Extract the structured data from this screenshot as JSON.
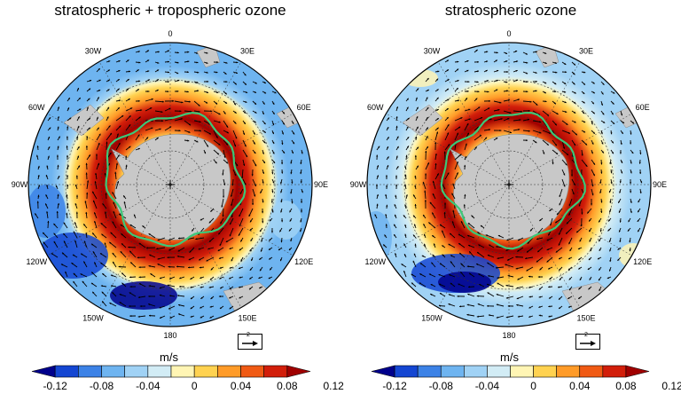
{
  "panels": [
    {
      "title": "stratospheric + tropospheric ozone"
    },
    {
      "title": "stratospheric ozone"
    }
  ],
  "map": {
    "longitude_labels": [
      "0",
      "30E",
      "60E",
      "90E",
      "120E",
      "150E",
      "180",
      "150W",
      "120W",
      "90W",
      "60W",
      "30W"
    ],
    "projection": "south polar stereographic",
    "field": "zonal wind change (shading) and wind vectors (arrows)",
    "contour_color": "#3cc878"
  },
  "colorbar": {
    "unit": "m/s",
    "tick_labels": [
      "-0.12",
      "-0.08",
      "-0.04",
      "0",
      "0.04",
      "0.08",
      "0.12"
    ],
    "colors": [
      "#00008c",
      "#1446d2",
      "#3c82e6",
      "#6eb4f0",
      "#a0d2f5",
      "#d2ecf5",
      "#fff5b4",
      "#ffd250",
      "#ff9b28",
      "#f05a14",
      "#d21e0a",
      "#a00000"
    ]
  },
  "reference_vector": {
    "label": "2"
  }
}
